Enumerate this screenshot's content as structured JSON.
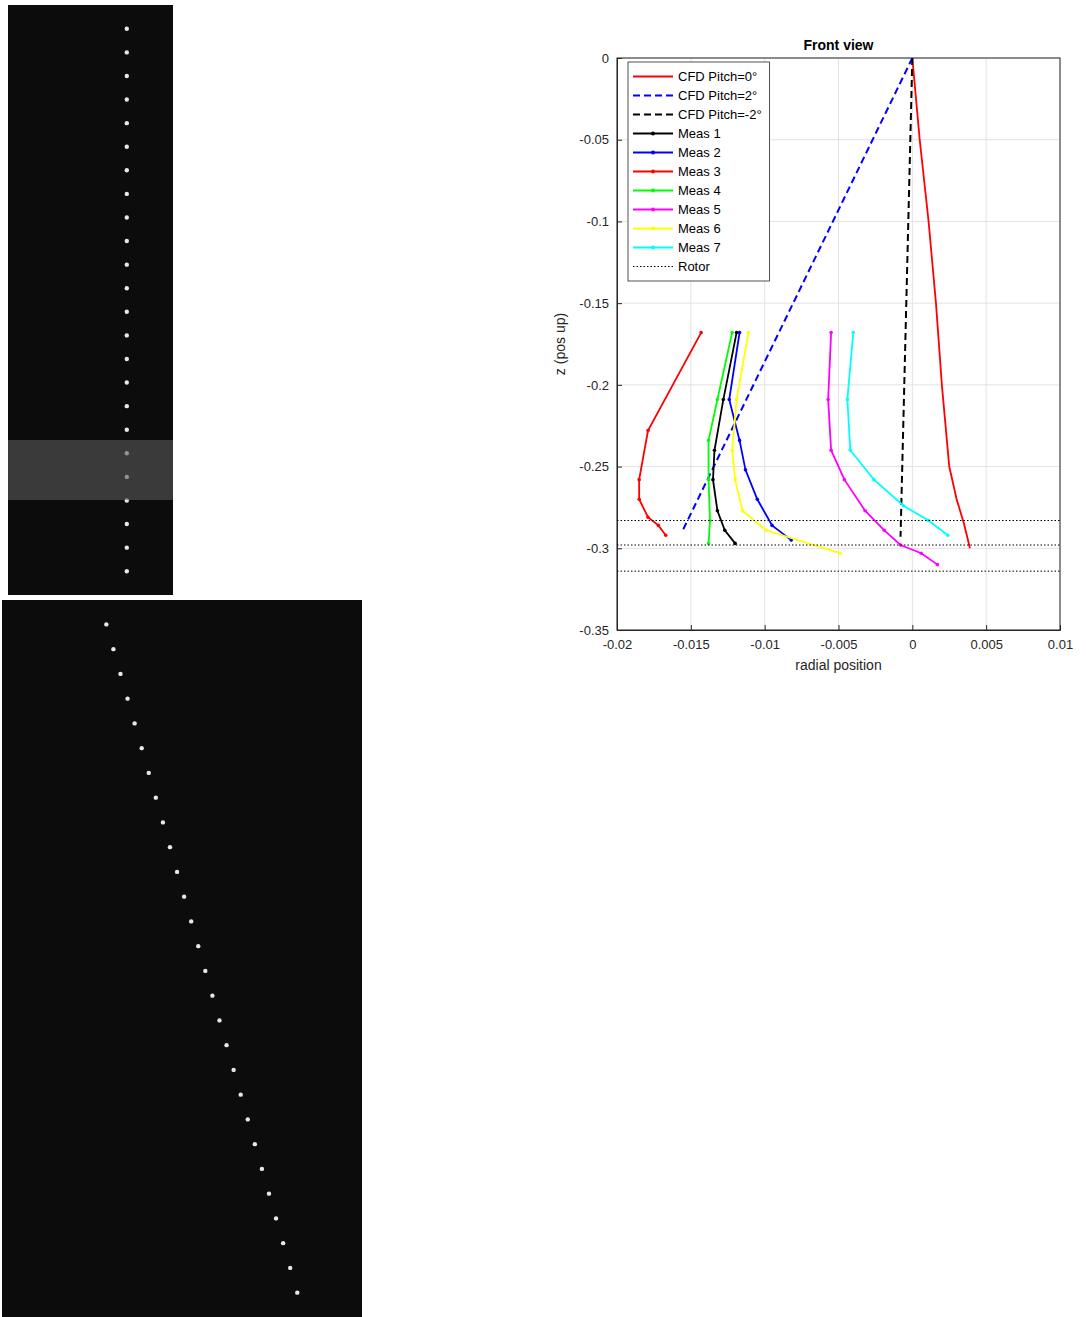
{
  "chart_data": {
    "type": "line",
    "title": "Front view",
    "x_label": "radial position",
    "y_label": "z (pos up)",
    "xlim": [
      -0.02,
      0.01
    ],
    "ylim": [
      -0.35,
      0
    ],
    "xticks": [
      -0.02,
      -0.015,
      -0.01,
      -0.005,
      0,
      0.005,
      0.01
    ],
    "yticks": [
      -0.35,
      -0.3,
      -0.25,
      -0.2,
      -0.15,
      -0.1,
      -0.05,
      0
    ],
    "grid": true,
    "legend": "northwest",
    "series": [
      {
        "name": "CFD Pitch=0°",
        "color": "#ff0000",
        "line_style": "solid",
        "x": [
          0,
          0.0005,
          0.0011,
          0.0016,
          0.002,
          0.0025,
          0.003,
          0.0035,
          0.0039
        ],
        "values": [
          0,
          -0.05,
          -0.1,
          -0.15,
          -0.2,
          -0.25,
          -0.27,
          -0.285,
          -0.3
        ]
      },
      {
        "name": "CFD Pitch=2°",
        "color": "#0000ff",
        "line_style": "dashed",
        "x": [
          0,
          -0.0156
        ],
        "values": [
          0,
          -0.29
        ]
      },
      {
        "name": "CFD Pitch=-2°",
        "color": "#000000",
        "line_style": "dashed",
        "x": [
          0,
          -0.0008
        ],
        "values": [
          0,
          -0.293
        ]
      },
      {
        "name": "Meas 1",
        "color": "#000000",
        "line_style": "solid",
        "marker": "point",
        "x": [
          -0.0119,
          -0.0128,
          -0.0134,
          -0.0135,
          -0.0132,
          -0.0127,
          -0.012
        ],
        "values": [
          -0.168,
          -0.209,
          -0.24,
          -0.258,
          -0.277,
          -0.289,
          -0.297
        ]
      },
      {
        "name": "Meas 2",
        "color": "#0000ff",
        "line_style": "solid",
        "marker": "point",
        "x": [
          -0.0117,
          -0.0124,
          -0.0117,
          -0.0113,
          -0.0105,
          -0.0095,
          -0.0082
        ],
        "values": [
          -0.168,
          -0.209,
          -0.234,
          -0.252,
          -0.27,
          -0.286,
          -0.295
        ]
      },
      {
        "name": "Meas 3",
        "color": "#ff0000",
        "line_style": "solid",
        "marker": "point",
        "x": [
          -0.0143,
          -0.0179,
          -0.0185,
          -0.0185,
          -0.0179,
          -0.0172,
          -0.0167
        ],
        "values": [
          -0.168,
          -0.228,
          -0.258,
          -0.27,
          -0.281,
          -0.286,
          -0.292
        ]
      },
      {
        "name": "Meas 4",
        "color": "#00ff00",
        "line_style": "solid",
        "marker": "point",
        "x": [
          -0.0122,
          -0.0132,
          -0.0138,
          -0.0138,
          -0.0137,
          -0.0138
        ],
        "values": [
          -0.168,
          -0.209,
          -0.234,
          -0.258,
          -0.283,
          -0.297
        ]
      },
      {
        "name": "Meas 5",
        "color": "#ff00ff",
        "line_style": "solid",
        "marker": "point",
        "x": [
          -0.0055,
          -0.0057,
          -0.0055,
          -0.0046,
          -0.0032,
          -0.0019,
          -0.0008,
          0.0006,
          0.0017
        ],
        "values": [
          -0.168,
          -0.209,
          -0.24,
          -0.258,
          -0.277,
          -0.289,
          -0.298,
          -0.303,
          -0.31
        ]
      },
      {
        "name": "Meas 6",
        "color": "#ffff00",
        "line_style": "solid",
        "marker": "point",
        "x": [
          -0.0111,
          -0.0119,
          -0.0122,
          -0.012,
          -0.0115,
          -0.0099,
          -0.0049
        ],
        "values": [
          -0.168,
          -0.209,
          -0.24,
          -0.258,
          -0.277,
          -0.289,
          -0.303
        ]
      },
      {
        "name": "Meas 7",
        "color": "#00ffff",
        "line_style": "solid",
        "marker": "point",
        "x": [
          -0.004,
          -0.0044,
          -0.0042,
          -0.0026,
          -0.0006,
          0.0011,
          0.0024
        ],
        "values": [
          -0.168,
          -0.209,
          -0.24,
          -0.258,
          -0.274,
          -0.283,
          -0.292
        ]
      },
      {
        "name": "Rotor",
        "color": "#000000",
        "line_style": "dotted",
        "type": "hline",
        "values": [
          -0.283,
          -0.298,
          -0.314
        ]
      }
    ]
  }
}
